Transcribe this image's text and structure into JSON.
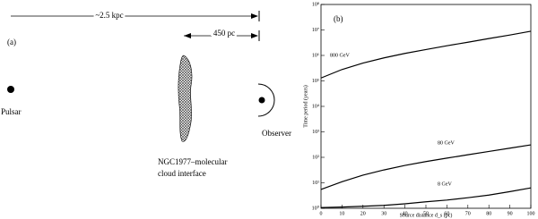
{
  "panel_a": {
    "label": "(a)",
    "distance_long": "~2.5 kpc",
    "distance_short": "450 pc",
    "pulsar": "Pulsar",
    "cloud_line1": "NGC1977–molecular",
    "cloud_line2": "cloud interface",
    "observer": "Observer"
  },
  "chart_data": {
    "type": "line",
    "panel_label": "(b)",
    "xlabel": "Source distance d_s (pc)",
    "ylabel": "Time period (years)",
    "x": [
      0,
      10,
      20,
      30,
      40,
      50,
      60,
      70,
      80,
      90,
      100
    ],
    "series": [
      {
        "name": "800 GeV",
        "color": "#000",
        "values": [
          130000,
          280000,
          500000,
          800000,
          1200000,
          1700000,
          2400000,
          3300000,
          4600000,
          6300000,
          8900000
        ]
      },
      {
        "name": "80 GeV",
        "color": "#000",
        "values": [
          5.5,
          11,
          20,
          32,
          48,
          68,
          93,
          126,
          170,
          229,
          309
        ]
      },
      {
        "name": "8 GeV",
        "color": "#000",
        "values": [
          1.07,
          1.12,
          1.2,
          1.3,
          1.5,
          1.8,
          2.1,
          2.6,
          3.3,
          4.5,
          6.3
        ]
      }
    ],
    "xlim": [
      0,
      100
    ],
    "xticks": [
      0,
      10,
      20,
      30,
      40,
      50,
      60,
      70,
      80,
      90,
      100
    ],
    "ylim": [
      1,
      100000000
    ],
    "log_y": true,
    "yticks": [
      {
        "value": 1,
        "label": "10⁰"
      },
      {
        "value": 10,
        "label": "10¹"
      },
      {
        "value": 100,
        "label": "10²"
      },
      {
        "value": 1000,
        "label": "10³"
      },
      {
        "value": 10000,
        "label": "10⁴"
      },
      {
        "value": 100000,
        "label": "10⁵"
      },
      {
        "value": 1000000,
        "label": "10⁶"
      },
      {
        "value": 10000000,
        "label": "10⁷"
      },
      {
        "value": 100000000,
        "label": "10⁸"
      }
    ]
  }
}
